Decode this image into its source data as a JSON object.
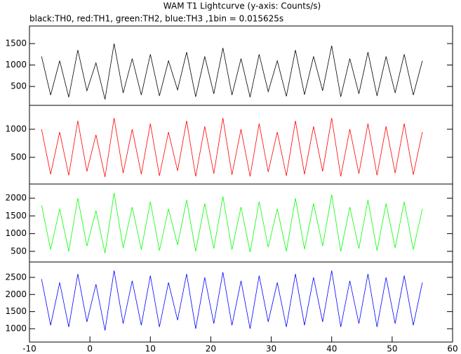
{
  "title": "WAM T1 Lightcurve (y-axis: Counts/s)",
  "subtitle": "black:TH0, red:TH1, green:TH2, blue:TH3 ,1bin = 0.015625s",
  "chart_data": [
    {
      "type": "line",
      "xlim": [
        -10,
        60
      ],
      "ylim": [
        60,
        1910
      ],
      "yticks": [
        500,
        1000,
        1500
      ],
      "x": [
        -8,
        -6.5,
        -5,
        -3.5,
        -2,
        -0.5,
        1,
        2.5,
        4,
        5.5,
        7,
        8.5,
        10,
        11.5,
        13,
        14.5,
        16,
        17.5,
        19,
        20.5,
        22,
        23.5,
        25,
        26.5,
        28,
        29.5,
        31,
        32.5,
        34,
        35.5,
        37,
        38.5,
        40,
        41.5,
        43,
        44.5,
        46,
        47.5,
        49,
        50.5,
        52,
        53.5,
        55
      ],
      "series": [
        {
          "color": "#000000",
          "values": [
            1200,
            300,
            1100,
            250,
            1350,
            400,
            1050,
            200,
            1500,
            350,
            1150,
            300,
            1250,
            280,
            1100,
            420,
            1300,
            260,
            1200,
            330,
            1400,
            300,
            1150,
            250,
            1250,
            380,
            1100,
            270,
            1350,
            310,
            1200,
            400,
            1450,
            260,
            1150,
            330,
            1300,
            280,
            1200,
            350,
            1250,
            300,
            1100
          ]
        }
      ]
    },
    {
      "type": "line",
      "xlim": [
        -10,
        60
      ],
      "ylim": [
        25,
        1425
      ],
      "yticks": [
        500,
        1000
      ],
      "x": [
        -8,
        -6.5,
        -5,
        -3.5,
        -2,
        -0.5,
        1,
        2.5,
        4,
        5.5,
        7,
        8.5,
        10,
        11.5,
        13,
        14.5,
        16,
        17.5,
        19,
        20.5,
        22,
        23.5,
        25,
        26.5,
        28,
        29.5,
        31,
        32.5,
        34,
        35.5,
        37,
        38.5,
        40,
        41.5,
        43,
        44.5,
        46,
        47.5,
        49,
        50.5,
        52,
        53.5,
        55
      ],
      "series": [
        {
          "color": "#ff0000",
          "values": [
            1000,
            200,
            950,
            180,
            1150,
            250,
            900,
            150,
            1200,
            220,
            1000,
            200,
            1100,
            170,
            950,
            260,
            1150,
            160,
            1050,
            210,
            1200,
            190,
            1000,
            160,
            1100,
            240,
            950,
            170,
            1150,
            200,
            1050,
            250,
            1200,
            160,
            1000,
            210,
            1100,
            180,
            1050,
            220,
            1100,
            190,
            950
          ]
        }
      ]
    },
    {
      "type": "line",
      "xlim": [
        -10,
        60
      ],
      "ylim": [
        200,
        2400
      ],
      "yticks": [
        500,
        1000,
        1500,
        2000
      ],
      "x": [
        -8,
        -6.5,
        -5,
        -3.5,
        -2,
        -0.5,
        1,
        2.5,
        4,
        5.5,
        7,
        8.5,
        10,
        11.5,
        13,
        14.5,
        16,
        17.5,
        19,
        20.5,
        22,
        23.5,
        25,
        26.5,
        28,
        29.5,
        31,
        32.5,
        34,
        35.5,
        37,
        38.5,
        40,
        41.5,
        43,
        44.5,
        46,
        47.5,
        49,
        50.5,
        52,
        53.5,
        55
      ],
      "series": [
        {
          "color": "#00ff00",
          "values": [
            1800,
            550,
            1700,
            500,
            2000,
            650,
            1650,
            450,
            2150,
            600,
            1750,
            550,
            1900,
            520,
            1700,
            680,
            1950,
            500,
            1850,
            580,
            2050,
            550,
            1750,
            480,
            1900,
            620,
            1700,
            500,
            2000,
            560,
            1850,
            650,
            2100,
            500,
            1750,
            580,
            1950,
            520,
            1850,
            600,
            1900,
            550,
            1700
          ]
        }
      ]
    },
    {
      "type": "line",
      "xlim": [
        -10,
        60
      ],
      "ylim": [
        610,
        2950
      ],
      "yticks": [
        1000,
        1500,
        2000,
        2500
      ],
      "xticks": [
        -10,
        0,
        10,
        20,
        30,
        40,
        50,
        60
      ],
      "x": [
        -8,
        -6.5,
        -5,
        -3.5,
        -2,
        -0.5,
        1,
        2.5,
        4,
        5.5,
        7,
        8.5,
        10,
        11.5,
        13,
        14.5,
        16,
        17.5,
        19,
        20.5,
        22,
        23.5,
        25,
        26.5,
        28,
        29.5,
        31,
        32.5,
        34,
        35.5,
        37,
        38.5,
        40,
        41.5,
        43,
        44.5,
        46,
        47.5,
        49,
        50.5,
        52,
        53.5,
        55
      ],
      "series": [
        {
          "color": "#0000ff",
          "values": [
            2450,
            1100,
            2350,
            1050,
            2600,
            1200,
            2300,
            950,
            2700,
            1150,
            2400,
            1100,
            2550,
            1050,
            2350,
            1250,
            2600,
            1000,
            2500,
            1150,
            2650,
            1100,
            2400,
            1000,
            2550,
            1200,
            2350,
            1050,
            2600,
            1100,
            2500,
            1200,
            2700,
            1050,
            2400,
            1150,
            2600,
            1050,
            2500,
            1150,
            2550,
            1100,
            2350
          ]
        }
      ]
    }
  ]
}
